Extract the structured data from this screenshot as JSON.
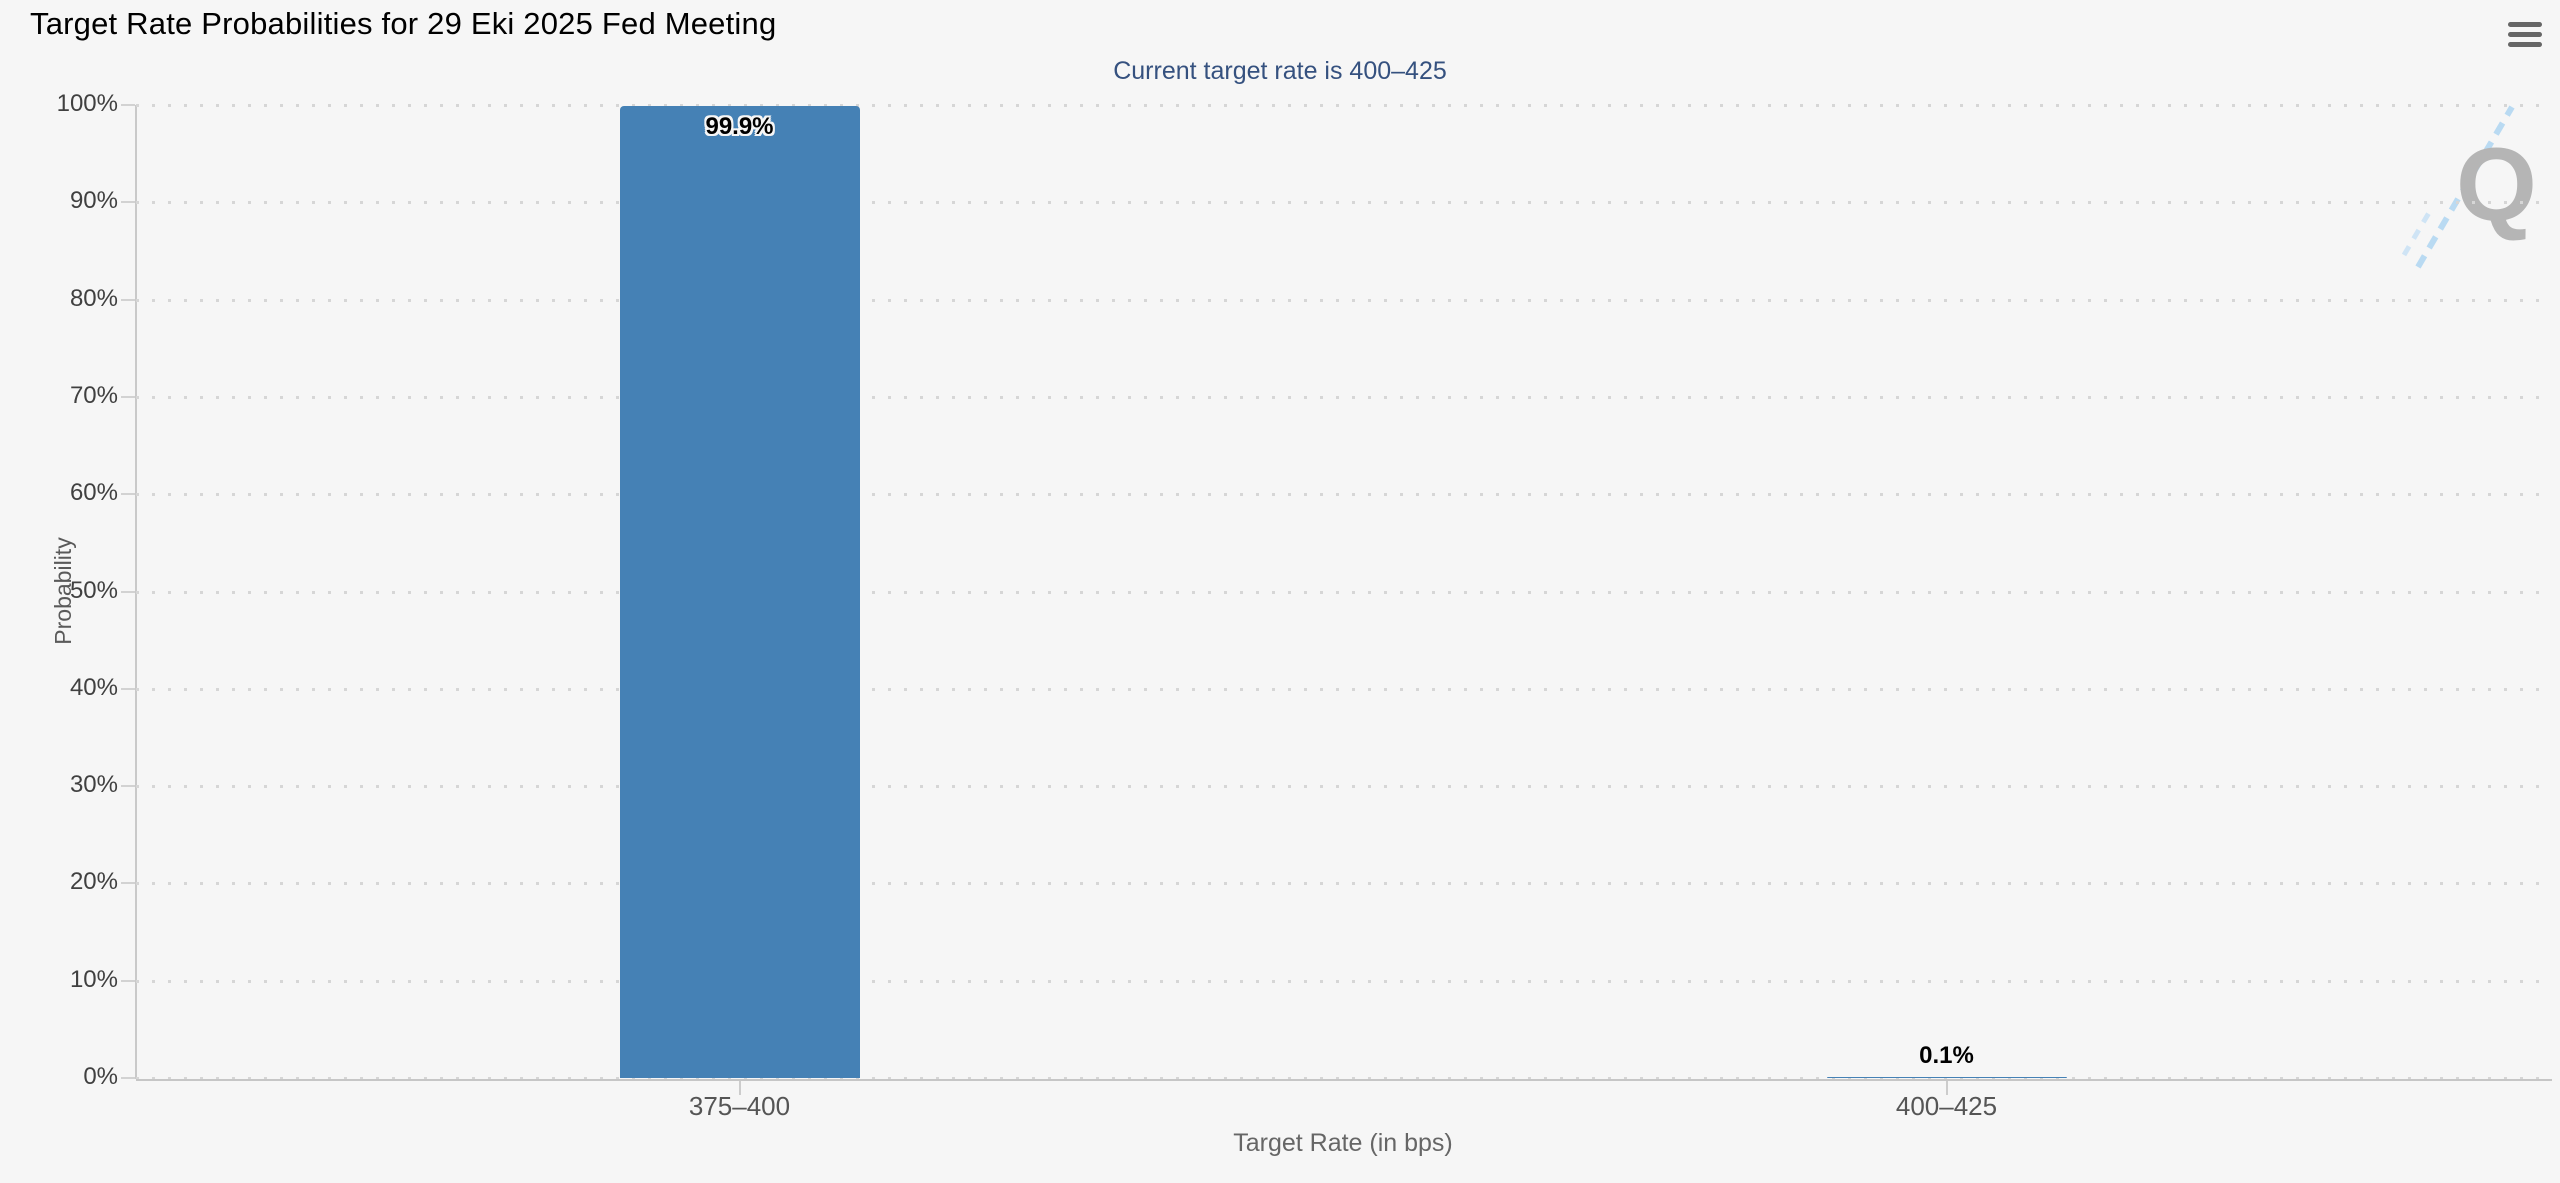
{
  "chart_data": {
    "type": "bar",
    "title": "Target Rate Probabilities for 29 Eki 2025 Fed Meeting",
    "subtitle": "Current target rate is 400–425",
    "categories": [
      "375–400",
      "400–425"
    ],
    "values": [
      99.9,
      0.1
    ],
    "value_labels": [
      "99.9%",
      "0.1%"
    ],
    "xlabel": "Target Rate (in bps)",
    "ylabel": "Probability",
    "ylim": [
      0,
      100
    ],
    "ytick_step": 10,
    "ytick_labels": [
      "0%",
      "10%",
      "20%",
      "30%",
      "40%",
      "50%",
      "60%",
      "70%",
      "80%",
      "90%",
      "100%"
    ],
    "grid": "dotted horizontal gridlines, legend off",
    "bar_color": "#4581b5"
  },
  "toolbar": {
    "export_menu_icon": "hamburger-menu-icon"
  },
  "watermark": {
    "letter": "Q",
    "streak_color": "#b9daf2",
    "letter_color": "#b5b5b5"
  },
  "colors": {
    "background": "#f6f6f6",
    "subtitle_text": "#35517f",
    "axis_line": "#c6c6c6",
    "grid_dot": "#d6d6d6",
    "ytick_text": "#404040",
    "category_text": "#555555",
    "axis_title_text": "#666666"
  }
}
